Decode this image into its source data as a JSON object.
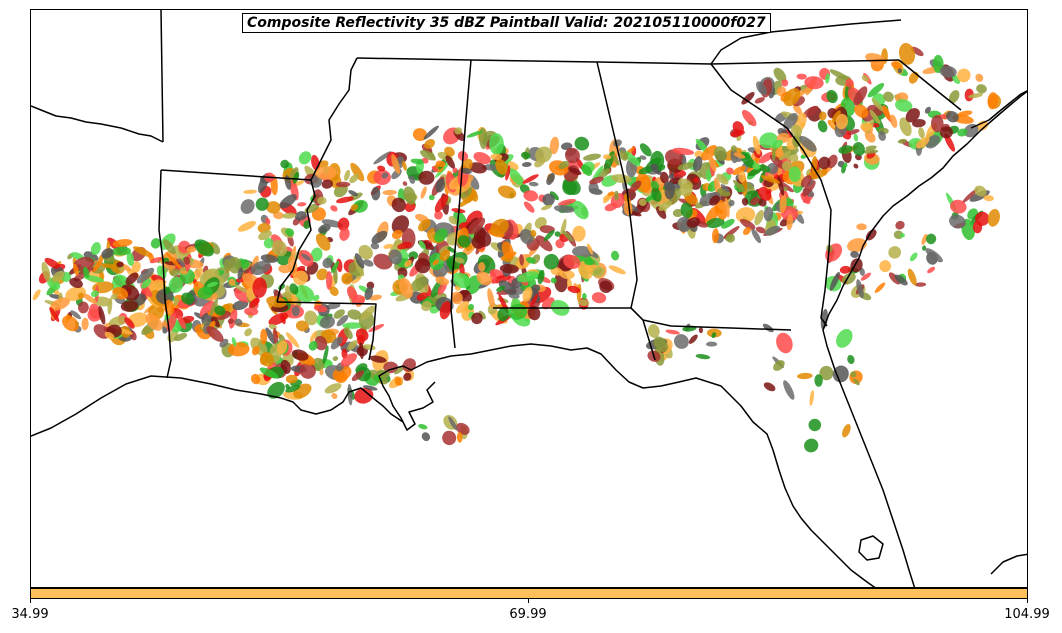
{
  "title": "Composite Reflectivity 35 dBZ Paintball Valid: 202105110000f027",
  "colorbar": {
    "color": "#ffbf5a",
    "ticks": [
      "34.99",
      "69.99",
      "104.99"
    ]
  },
  "member_colors": [
    "#ff4a4a",
    "#e61010",
    "#a83232",
    "#7a1414",
    "#ff9a3a",
    "#ff7f00",
    "#ffb240",
    "#e08a00",
    "#2fbf2f",
    "#4fdc4f",
    "#1a8f1a",
    "#8a9a3a",
    "#b5b04a",
    "#555555",
    "#6b6b6b"
  ]
}
